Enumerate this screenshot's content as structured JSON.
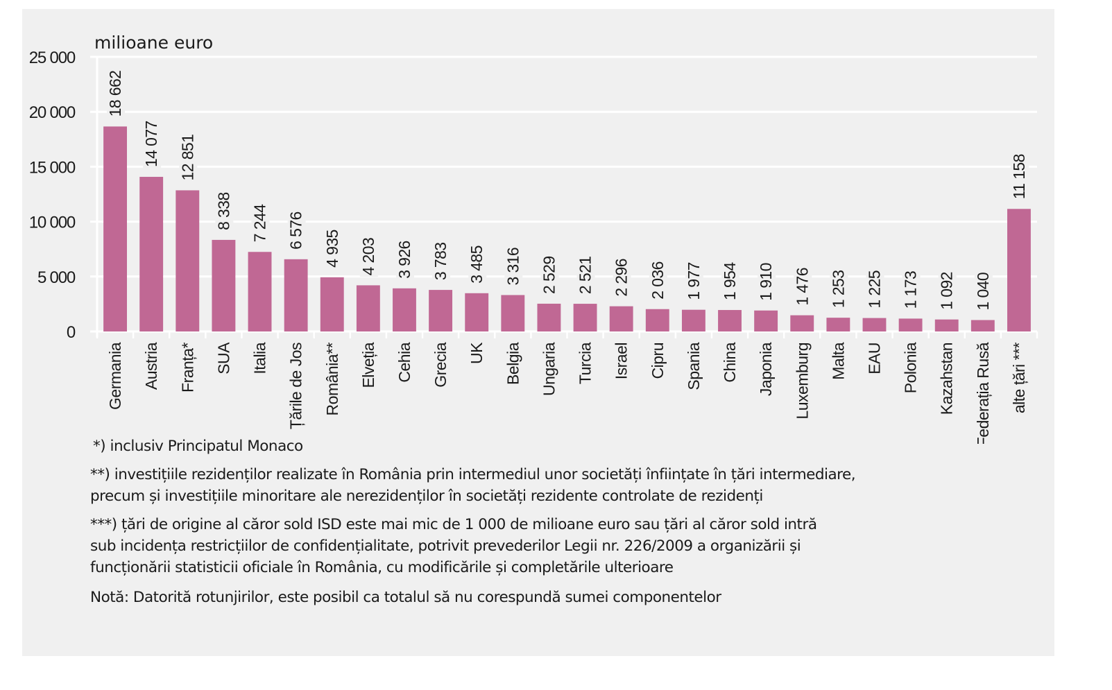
{
  "chart_data": {
    "type": "bar",
    "title": "",
    "unit_label": "milioane euro",
    "xlabel": "",
    "ylabel": "milioane euro",
    "ylim": [
      0,
      25000
    ],
    "yticks": [
      0,
      5000,
      10000,
      15000,
      20000,
      25000
    ],
    "ytick_labels": [
      "0",
      "5 000",
      "10 000",
      "15 000",
      "20 000",
      "25 000"
    ],
    "grid": true,
    "legend": "none",
    "bar_color": "#c06894",
    "categories": [
      "Germania",
      "Austria",
      "Franța*",
      "SUA",
      "Italia",
      "Țările de Jos",
      "România**",
      "Elveția",
      "Cehia",
      "Grecia",
      "UK",
      "Belgia",
      "Ungaria",
      "Turcia",
      "Israel",
      "Cipru",
      "Spania",
      "China",
      "Japonia",
      "Luxemburg",
      "Malta",
      "EAU",
      "Polonia",
      "Kazahstan",
      "Federația Rusă",
      "alte țări ***"
    ],
    "values": [
      18662,
      14077,
      12851,
      8338,
      7244,
      6576,
      4935,
      4203,
      3926,
      3783,
      3485,
      3316,
      2529,
      2521,
      2296,
      2036,
      1977,
      1954,
      1910,
      1476,
      1253,
      1225,
      1173,
      1092,
      1040,
      11158
    ],
    "value_labels": [
      "18 662",
      "14 077",
      "12 851",
      "8 338",
      "7 244",
      "6 576",
      "4 935",
      "4 203",
      "3 926",
      "3 783",
      "3 485",
      "3 316",
      "2 529",
      "2 521",
      "2 296",
      "2 036",
      "1 977",
      "1 954",
      "1 910",
      "1 476",
      "1 253",
      "1 225",
      "1 173",
      "1 092",
      "1 040",
      "11 158"
    ]
  },
  "notes": [
    "*) inclusiv Principatul Monaco",
    "**) investițiile rezidenților realizate în România prin intermediul unor societăți înființate în țări intermediare,\nprecum și investițiile minoritare ale nerezidenților în societăți rezidente controlate de rezidenți",
    "***) țări de origine al căror sold ISD este mai mic de 1 000 de milioane euro sau țări al căror sold intră\nsub incidența restricțiilor de confidențialitate, potrivit prevederilor Legii nr. 226/2009 a organizării și\nfuncționării statisticii oficiale  în România, cu modificările și completările ulterioare",
    "Notă: Datorită rotunjirilor, este posibil ca totalul să nu corespundă sumei componentelor"
  ]
}
